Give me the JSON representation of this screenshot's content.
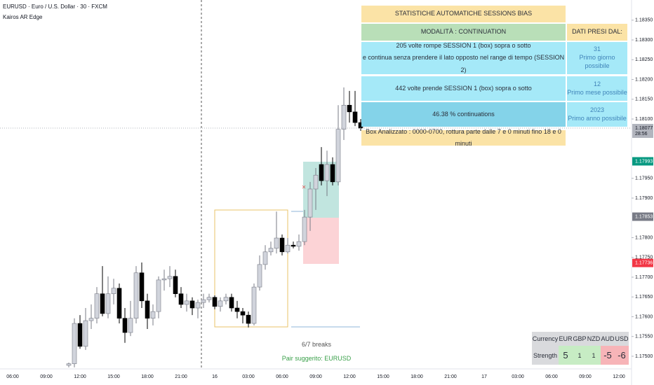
{
  "chart_data": {
    "type": "candlestick",
    "title": "EURUSD · Euro / U.S. Dollar · 30 · FXCM",
    "subtitle": "Kairos AR Edge",
    "categories": [
      "06:00",
      null,
      null,
      null,
      null,
      null,
      "09:00",
      null,
      null,
      null,
      null,
      null,
      "12:00",
      null,
      null,
      null,
      null,
      null,
      "15:00",
      null,
      null,
      null,
      null,
      null,
      "18:00",
      null,
      null,
      null,
      null,
      null,
      "21:00",
      null,
      null,
      null,
      null,
      null,
      "16",
      null,
      null,
      null,
      null,
      null,
      "03:00",
      null,
      null,
      null,
      null,
      null,
      "06:00",
      null,
      null,
      null,
      null,
      null,
      "09:00",
      null,
      null,
      null,
      null,
      null,
      "12:00",
      null,
      null,
      null,
      null,
      null,
      "15:00",
      null,
      null,
      null,
      null,
      null,
      "18:00",
      null,
      null,
      null,
      null,
      null,
      "21:00",
      null,
      null,
      null,
      null,
      null,
      "17",
      null,
      null,
      null,
      null,
      null,
      "03:00",
      null,
      null,
      null,
      null,
      null,
      "06:00",
      null,
      null,
      null,
      null,
      null,
      "09:00",
      null,
      null,
      null,
      null,
      null,
      "12:00"
    ],
    "open": [
      null,
      null,
      null,
      null,
      null,
      null,
      null,
      null,
      null,
      null,
      1.17477,
      1.17481,
      1.17583,
      1.17525,
      1.1759,
      1.17596,
      1.17658,
      1.17608,
      1.17658,
      1.17672,
      1.17596,
      1.1756,
      1.17596,
      1.17711,
      1.1764,
      1.17596,
      1.17613,
      1.17693,
      1.17696,
      1.17702,
      1.17658,
      1.17631,
      1.1764,
      1.17622,
      1.17636,
      1.17643,
      1.17649,
      1.17626,
      1.1764,
      1.17649,
      1.17622,
      1.17613,
      1.17604,
      1.17583,
      1.17675,
      1.17732,
      1.17764,
      1.17773,
      1.17799,
      1.17764,
      1.17781,
      1.17778,
      1.1779,
      1.17852,
      1.17923,
      1.17985,
      1.17944,
      1.17985,
      1.17941,
      1.18074,
      1.18135,
      1.18118,
      1.18091,
      null,
      null,
      null,
      null,
      null,
      null,
      null,
      null,
      null,
      null,
      null,
      null,
      null,
      null,
      null,
      null,
      null,
      null,
      null,
      null,
      null,
      null,
      null,
      null,
      null,
      null,
      null,
      null,
      null,
      null,
      null,
      null,
      null,
      null,
      null,
      null,
      null,
      null,
      null,
      null,
      null,
      null,
      null,
      null,
      null,
      null
    ],
    "high": [
      null,
      null,
      null,
      null,
      null,
      null,
      null,
      null,
      null,
      null,
      1.17484,
      1.17596,
      1.17604,
      1.17622,
      1.17631,
      1.17675,
      1.17728,
      1.17702,
      1.17696,
      1.17684,
      1.17622,
      1.1764,
      1.17728,
      1.17737,
      1.17658,
      1.17631,
      1.17702,
      1.17719,
      1.17728,
      1.17719,
      1.17675,
      1.17658,
      1.17649,
      1.17643,
      1.17658,
      1.17658,
      1.17654,
      1.17649,
      1.17658,
      1.17658,
      1.1764,
      1.17622,
      1.17613,
      1.17684,
      1.17755,
      1.17781,
      1.1779,
      1.17866,
      1.17808,
      1.17799,
      1.1779,
      1.17808,
      1.1787,
      1.17941,
      1.17976,
      1.18029,
      1.1802,
      1.18003,
      1.18135,
      1.1818,
      1.18171,
      1.18171,
      1.181,
      null,
      null,
      null,
      null,
      null,
      null,
      null,
      null,
      null,
      null,
      null,
      null,
      null,
      null,
      null,
      null,
      null,
      null,
      null,
      null,
      null,
      null,
      null,
      null,
      null,
      null,
      null,
      null,
      null,
      null,
      null,
      null,
      null,
      null,
      null,
      null,
      null,
      null,
      null,
      null,
      null,
      null,
      null,
      null,
      null,
      null
    ],
    "low": [
      null,
      null,
      null,
      null,
      null,
      null,
      null,
      null,
      null,
      null,
      1.17472,
      1.17472,
      1.17519,
      1.17516,
      1.17569,
      1.17583,
      1.17601,
      1.17596,
      1.17631,
      1.17583,
      1.17534,
      1.17551,
      1.17583,
      1.17622,
      1.17569,
      1.17578,
      1.17596,
      1.17666,
      1.17675,
      1.17649,
      1.17622,
      1.17613,
      1.17604,
      1.17596,
      1.17622,
      1.17636,
      1.17619,
      1.17613,
      1.17631,
      1.17613,
      1.17596,
      1.17583,
      1.17573,
      1.17578,
      1.17666,
      1.17719,
      1.17755,
      1.1776,
      1.17755,
      1.1776,
      1.17773,
      1.17767,
      1.17781,
      1.17817,
      1.1787,
      1.17932,
      1.17905,
      1.17932,
      1.17932,
      1.18047,
      1.18091,
      1.18082,
      1.1807,
      null,
      null,
      null,
      null,
      null,
      null,
      null,
      null,
      null,
      null,
      null,
      null,
      null,
      null,
      null,
      null,
      null,
      null,
      null,
      null,
      null,
      null,
      null,
      null,
      null,
      null,
      null,
      null,
      null,
      null,
      null,
      null,
      null,
      null,
      null,
      null,
      null,
      null,
      null,
      null,
      null,
      null,
      null,
      null,
      null,
      null
    ],
    "close": [
      null,
      null,
      null,
      null,
      null,
      null,
      null,
      null,
      null,
      null,
      1.17481,
      1.17583,
      1.17525,
      1.1759,
      1.17596,
      1.17658,
      1.17608,
      1.17658,
      1.17672,
      1.17596,
      1.1756,
      1.17596,
      1.17711,
      1.1764,
      1.17596,
      1.17613,
      1.17693,
      1.17696,
      1.17702,
      1.17658,
      1.17631,
      1.1764,
      1.17622,
      1.17636,
      1.17643,
      1.17649,
      1.17626,
      1.1764,
      1.17649,
      1.17622,
      1.17613,
      1.17604,
      1.17583,
      1.17675,
      1.17732,
      1.17764,
      1.17773,
      1.17799,
      1.17764,
      1.17781,
      1.17778,
      1.1779,
      1.17852,
      1.17923,
      1.17958,
      1.17944,
      1.17985,
      1.17941,
      1.18074,
      1.18135,
      1.18118,
      1.18091,
      1.18077,
      null,
      null,
      null,
      null,
      null,
      null,
      null,
      null,
      null,
      null,
      null,
      null,
      null,
      null,
      null,
      null,
      null,
      null,
      null,
      null,
      null,
      null,
      null,
      null,
      null,
      null,
      null,
      null,
      null,
      null,
      null,
      null,
      null,
      null,
      null,
      null,
      null,
      null,
      null,
      null,
      null,
      null,
      null,
      null,
      null,
      null
    ],
    "up_color": "#d1d4dc",
    "down_color": "#000000",
    "ylim": [
      1.17468,
      1.18401
    ],
    "yticks": [
      {
        "value": 1.175,
        "label": "1.17500"
      },
      {
        "value": 1.1755,
        "label": "1.17550"
      },
      {
        "value": 1.176,
        "label": "1.17600"
      },
      {
        "value": 1.1765,
        "label": "1.17650"
      },
      {
        "value": 1.177,
        "label": "1.17700"
      },
      {
        "value": 1.1775,
        "label": "1.17750"
      },
      {
        "value": 1.178,
        "label": "1.17800"
      },
      {
        "value": 1.179,
        "label": "1.17900"
      },
      {
        "value": 1.1795,
        "label": "1.17950"
      },
      {
        "value": 1.181,
        "label": "1.18100"
      },
      {
        "value": 1.1815,
        "label": "1.18150"
      },
      {
        "value": 1.182,
        "label": "1.18200"
      },
      {
        "value": 1.1825,
        "label": "1.18250"
      },
      {
        "value": 1.183,
        "label": "1.18300"
      },
      {
        "value": 1.1835,
        "label": "1.18350"
      }
    ],
    "price_tags": [
      {
        "value": 1.18077,
        "label": "1.18077",
        "countdown": "28:56",
        "color": "#b2b5be"
      },
      {
        "value": 1.17993,
        "label": "1.17993",
        "color": "#089981"
      },
      {
        "value": 1.17853,
        "label": "1.17853",
        "color": "#787b86"
      },
      {
        "value": 1.17736,
        "label": "1.17736",
        "color": "#f23645"
      }
    ],
    "annotations": [
      "6/7 breaks",
      "Pair suggerito: EURUSD"
    ]
  },
  "stats": {
    "title": "STATISTICHE AUTOMATICHE SESSIONS BIAS",
    "mode": "MODALITÀ : CONTINUATION",
    "side_header": "DATI PRESI DAL:",
    "rows": [
      {
        "text": [
          "205 volte rompe SESSION 1 (box) sopra o sotto",
          "e continua senza prendere il lato opposto nel range di tempo (SESSION 2)"
        ],
        "side": [
          "31",
          "Primo giorno possibile"
        ]
      },
      {
        "text": [
          "442 volte prende SESSION 1 (box) sopra o sotto"
        ],
        "side": [
          "12",
          "Primo mese possibile"
        ]
      },
      {
        "text": [
          "46.38 % continuations"
        ],
        "side": [
          "2023",
          "Primo anno possibile"
        ]
      }
    ],
    "footer": "Box Analizzato : 0000-0700, rottura parte dalle 7 e 0 minuti fino 18 e 0 minuti"
  },
  "strength": {
    "header": [
      "Currency",
      "EUR",
      "GBP",
      "NZD",
      "AUD",
      "USD"
    ],
    "label": "Strength",
    "values": [
      5,
      1,
      1,
      -5,
      -6
    ]
  }
}
